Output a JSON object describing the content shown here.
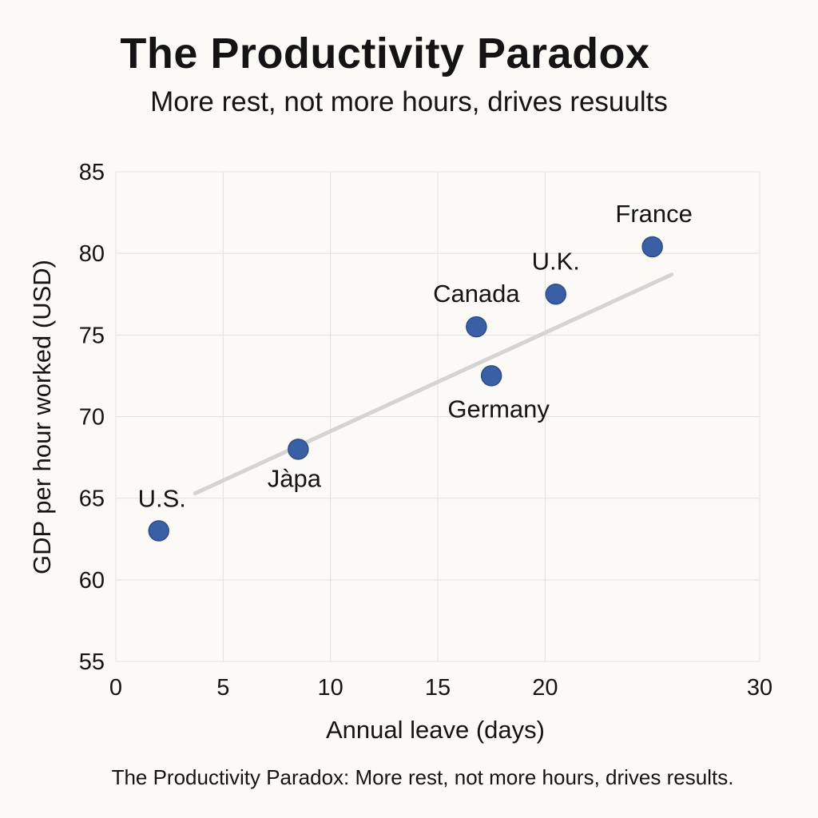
{
  "chart_data": {
    "type": "scatter",
    "title": "The Productivity Paradox",
    "subtitle": "More rest, not more hours, drives resuults",
    "caption": "The Productivity Paradox: More rest, not more hours, drives results.",
    "xlabel": "Annual leave (days)",
    "ylabel": "GDP per hour worked (USD)",
    "xlim": [
      0,
      30
    ],
    "ylim": [
      55,
      85
    ],
    "xticks": [
      0,
      5,
      10,
      15,
      20,
      30
    ],
    "yticks": [
      55,
      60,
      65,
      70,
      75,
      80,
      85
    ],
    "grid": true,
    "point_color": "#3a5fa5",
    "trend_color": "#d4d4d4",
    "points": [
      {
        "label": "U.S.",
        "x": 2,
        "y": 63
      },
      {
        "label": "Jàpa",
        "x": 8.5,
        "y": 68
      },
      {
        "label": "Canada",
        "x": 16.8,
        "y": 75.5
      },
      {
        "label": "Germany",
        "x": 17.5,
        "y": 72.5
      },
      {
        "label": "U.K.",
        "x": 20.5,
        "y": 77.5
      },
      {
        "label": "France",
        "x": 25,
        "y": 80.4
      }
    ],
    "trendline": {
      "x": [
        3.7,
        25.9
      ],
      "y": [
        65.3,
        78.7
      ]
    }
  }
}
